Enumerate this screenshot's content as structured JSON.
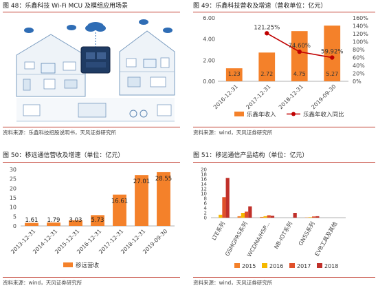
{
  "panels": [
    {
      "title": "图 48：乐鑫科技 Wi-Fi MCU 及模组应用场景",
      "source": "资料来源：乐鑫科技招股说明书，天风证券研究所"
    },
    {
      "title": "图 49：乐鑫科技营收及增速（营收单位：亿元）",
      "source": "资料来源：wind，天风证券研究所"
    },
    {
      "title": "图 50：移远通信营收及增速（单位：亿元）",
      "source": "资料来源：wind，天风证券研究所"
    },
    {
      "title": "图 51：移远通信产品结构（单位：亿元）",
      "source": "资料来源：wind，天风证券研究所"
    }
  ],
  "chart_data": [
    {
      "id": "fig49",
      "type": "bar+line",
      "categories": [
        "2016-12-31",
        "2017-12-31",
        "2018-12-31",
        "2019-09-30"
      ],
      "series": [
        {
          "name": "乐鑫年收入",
          "type": "bar",
          "axis": "left",
          "values": [
            1.23,
            2.72,
            4.75,
            5.27
          ],
          "labels": [
            "1.23",
            "2.72",
            "4.75",
            "5.27"
          ],
          "color": "#f4812a"
        },
        {
          "name": "乐鑫年收入同比",
          "type": "line",
          "axis": "right",
          "values": [
            null,
            121.25,
            74.6,
            59.92
          ],
          "labels": [
            "",
            "121.25%",
            "74.60%",
            "59.92%"
          ],
          "color": "#c00000"
        }
      ],
      "ylim_left": [
        0,
        6
      ],
      "yticks_left": [
        "0.00",
        "2.00",
        "4.00",
        "6.00"
      ],
      "ylim_right": [
        0,
        160
      ],
      "yticks_right": [
        "0%",
        "20%",
        "40%",
        "60%",
        "80%",
        "100%",
        "120%",
        "140%",
        "160%"
      ],
      "legend": "bottom"
    },
    {
      "id": "fig50",
      "type": "bar",
      "categories": [
        "2013-12-31",
        "2014-12-31",
        "2015-12-31",
        "2016-12-31",
        "2017-12-31",
        "2018-12-31",
        "2019-09-30"
      ],
      "series": [
        {
          "name": "移远营收",
          "values": [
            1.61,
            1.79,
            3.03,
            5.73,
            16.61,
            27.01,
            28.55
          ],
          "labels": [
            "1.61",
            "1.79",
            "3.03",
            "5.73",
            "16.61",
            "27.01",
            "28.55"
          ],
          "color": "#f4812a"
        }
      ],
      "ylim": [
        0,
        30
      ],
      "yticks": [
        "0",
        "5",
        "10",
        "15",
        "20",
        "25",
        "30"
      ],
      "legend": "bottom"
    },
    {
      "id": "fig51",
      "type": "bar",
      "categories": [
        "LTE系列",
        "GSMGPRS系列",
        "WCDMA/HSP...",
        "NB-IOT系列",
        "GNSS系列",
        "EVB工具及其他"
      ],
      "series": [
        {
          "name": "2015",
          "values": [
            0.0,
            0.6,
            0.3,
            0.0,
            0.1,
            0.0
          ],
          "color": "#f4812a"
        },
        {
          "name": "2016",
          "values": [
            1.2,
            2.0,
            0.6,
            0.0,
            0.2,
            0.0
          ],
          "color": "#f5b800"
        },
        {
          "name": "2017",
          "values": [
            8.5,
            2.5,
            1.0,
            0.0,
            0.5,
            0.0
          ],
          "color": "#e0502a"
        },
        {
          "name": "2018",
          "values": [
            16.5,
            4.7,
            0.8,
            2.0,
            0.6,
            0.0
          ],
          "color": "#c0302a"
        }
      ],
      "ylim": [
        0,
        20
      ],
      "yticks": [
        "0",
        "2",
        "4",
        "6",
        "8",
        "10",
        "12",
        "14",
        "16",
        "18",
        "20"
      ],
      "legend": "bottom"
    }
  ]
}
